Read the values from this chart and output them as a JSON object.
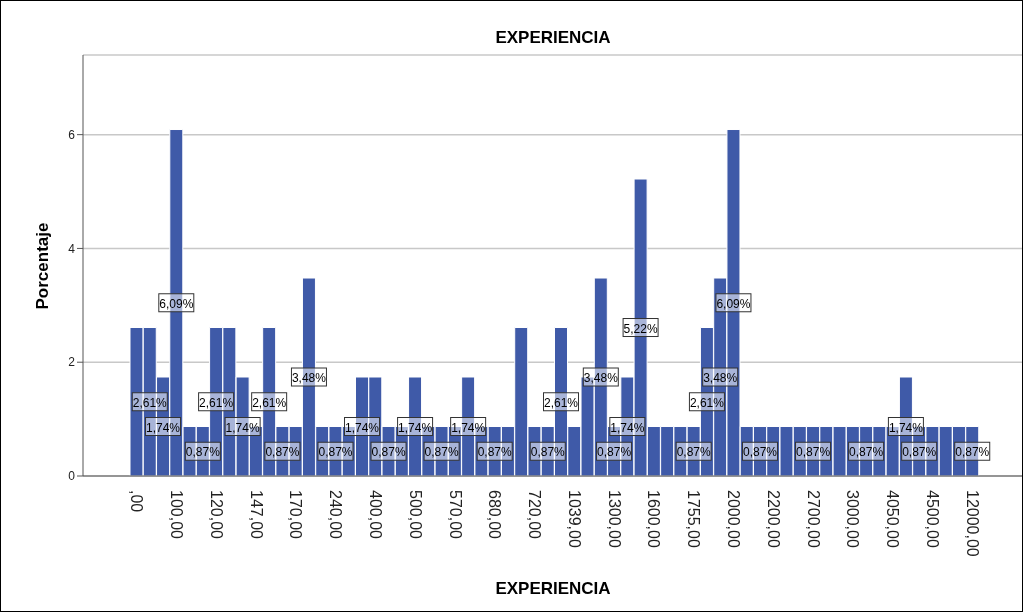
{
  "chart_data": {
    "type": "bar",
    "title": "EXPERIENCIA",
    "xlabel": "EXPERIENCIA",
    "ylabel": "Porcentaje",
    "categories": [
      ",00",
      null,
      null,
      "100,00",
      null,
      null,
      "120,00",
      null,
      null,
      "147,00",
      null,
      null,
      "170,00",
      null,
      null,
      "240,00",
      null,
      null,
      "400,00",
      null,
      null,
      "500,00",
      null,
      null,
      "570,00",
      null,
      null,
      "680,00",
      null,
      null,
      "720,00",
      null,
      null,
      "1039,00",
      null,
      null,
      "1300,00",
      null,
      null,
      "1600,00",
      null,
      null,
      "1755,00",
      null,
      null,
      "2000,00",
      null,
      null,
      "2200,00",
      null,
      null,
      "2700,00",
      null,
      null,
      "3000,00",
      null,
      null,
      "4050,00",
      null,
      null,
      "4500,00",
      null,
      null,
      "12000,00"
    ],
    "values": [
      2.61,
      2.61,
      1.74,
      6.09,
      0.87,
      0.87,
      2.61,
      2.61,
      1.74,
      0.87,
      2.61,
      0.87,
      0.87,
      3.48,
      0.87,
      0.87,
      0.87,
      1.74,
      1.74,
      0.87,
      0.87,
      1.74,
      0.87,
      0.87,
      0.87,
      1.74,
      0.87,
      0.87,
      0.87,
      2.61,
      0.87,
      0.87,
      2.61,
      0.87,
      1.74,
      3.48,
      0.87,
      1.74,
      5.22,
      0.87,
      0.87,
      0.87,
      0.87,
      2.61,
      3.48,
      6.09,
      0.87,
      0.87,
      0.87,
      0.87,
      0.87,
      0.87,
      0.87,
      0.87,
      0.87,
      0.87,
      0.87,
      0.87,
      1.74,
      0.87,
      0.87,
      0.87,
      0.87,
      0.87
    ],
    "value_labels": [
      null,
      "2,61%",
      "1,74%",
      "6,09%",
      null,
      "0,87%",
      "2,61%",
      null,
      "1,74%",
      null,
      "2,61%",
      "0,87%",
      null,
      "3,48%",
      null,
      "0,87%",
      null,
      "1,74%",
      null,
      "0,87%",
      null,
      "1,74%",
      null,
      "0,87%",
      null,
      "1,74%",
      null,
      "0,87%",
      null,
      null,
      null,
      "0,87%",
      "2,61%",
      null,
      null,
      "3,48%",
      "0,87%",
      "1,74%",
      "5,22%",
      null,
      null,
      null,
      "0,87%",
      "2,61%",
      "3,48%",
      "6,09%",
      null,
      "0,87%",
      null,
      null,
      null,
      "0,87%",
      null,
      null,
      null,
      "0,87%",
      null,
      null,
      "1,74%",
      "0,87%",
      null,
      null,
      null,
      "0,87%"
    ],
    "color": "#3f5aa8",
    "ylim": [
      0,
      7.4
    ],
    "yticks": [
      0,
      2,
      4,
      6
    ],
    "grid": "y"
  }
}
